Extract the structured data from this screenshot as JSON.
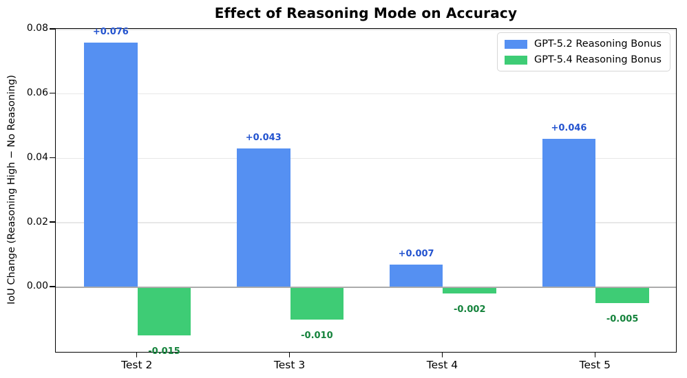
{
  "chart_data": {
    "type": "bar",
    "title": "Effect of Reasoning Mode on Accuracy",
    "ylabel": "IoU Change (Reasoning High − No Reasoning)",
    "xlabel": "",
    "categories": [
      "Test 2",
      "Test 3",
      "Test 4",
      "Test 5"
    ],
    "series": [
      {
        "name": "GPT-5.2 Reasoning Bonus",
        "color": "#5590f2",
        "label_color": "#2353cf",
        "values": [
          0.076,
          0.043,
          0.007,
          0.046
        ],
        "labels": [
          "+0.076",
          "+0.043",
          "+0.007",
          "+0.046"
        ]
      },
      {
        "name": "GPT-5.4 Reasoning Bonus",
        "color": "#3ecc75",
        "label_color": "#15833c",
        "values": [
          -0.015,
          -0.01,
          -0.002,
          -0.005
        ],
        "labels": [
          "-0.015",
          "-0.010",
          "-0.002",
          "-0.005"
        ]
      }
    ],
    "yticks": [
      0.0,
      0.02,
      0.04,
      0.06,
      0.08
    ],
    "ytick_labels": [
      "0.00",
      "0.02",
      "0.04",
      "0.06",
      "0.08"
    ],
    "ylim": [
      -0.0205,
      0.0802
    ],
    "xlim": [
      -0.535,
      3.535
    ],
    "bar_width": 0.35,
    "grid": "horizontal",
    "legend_position": "upper right",
    "zero_line_color": "#ababab",
    "gridline_color": "#e7e7e7"
  }
}
